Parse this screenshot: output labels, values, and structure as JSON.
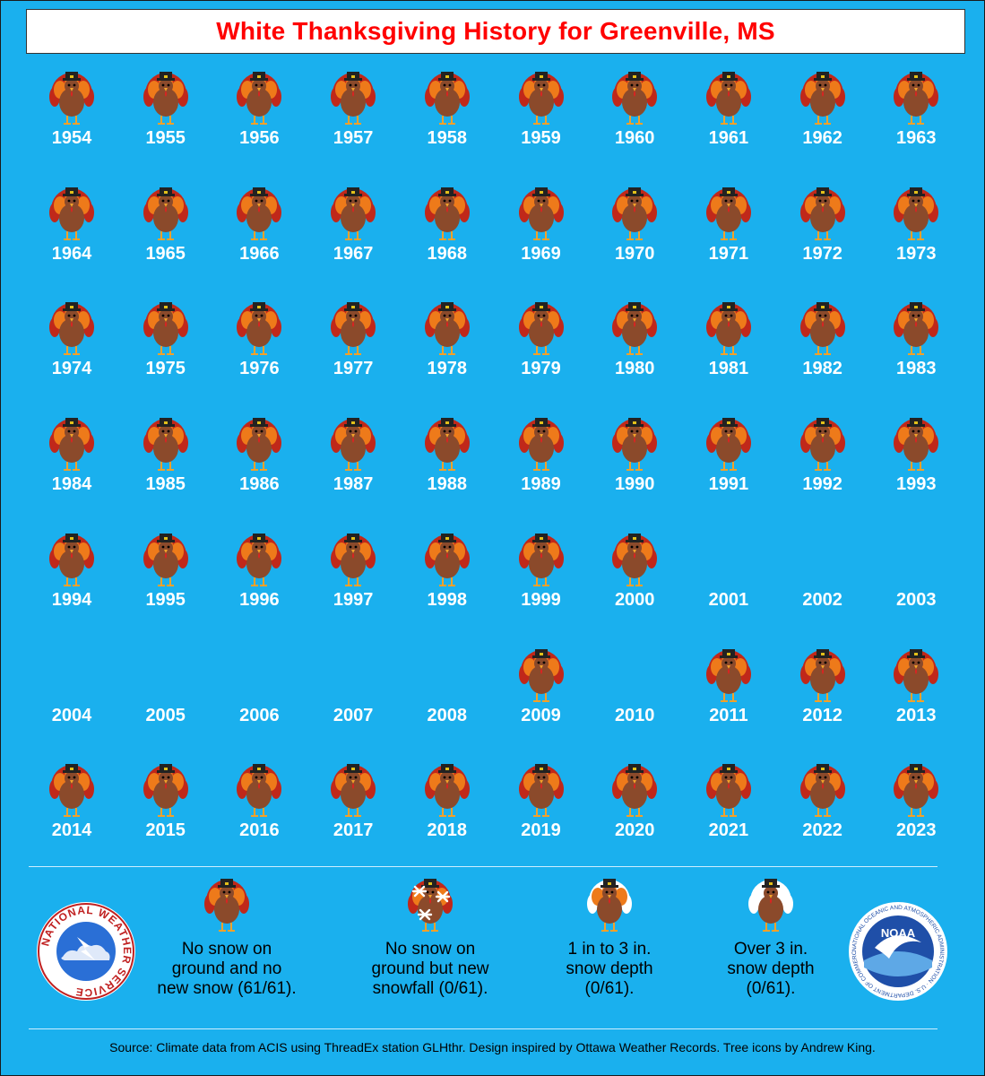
{
  "title": "White Thanksgiving History for Greenville, MS",
  "years": [
    {
      "year": "1954",
      "category": "none"
    },
    {
      "year": "1955",
      "category": "none"
    },
    {
      "year": "1956",
      "category": "none"
    },
    {
      "year": "1957",
      "category": "none"
    },
    {
      "year": "1958",
      "category": "none"
    },
    {
      "year": "1959",
      "category": "none"
    },
    {
      "year": "1960",
      "category": "none"
    },
    {
      "year": "1961",
      "category": "none"
    },
    {
      "year": "1962",
      "category": "none"
    },
    {
      "year": "1963",
      "category": "none"
    },
    {
      "year": "1964",
      "category": "none"
    },
    {
      "year": "1965",
      "category": "none"
    },
    {
      "year": "1966",
      "category": "none"
    },
    {
      "year": "1967",
      "category": "none"
    },
    {
      "year": "1968",
      "category": "none"
    },
    {
      "year": "1969",
      "category": "none"
    },
    {
      "year": "1970",
      "category": "none"
    },
    {
      "year": "1971",
      "category": "none"
    },
    {
      "year": "1972",
      "category": "none"
    },
    {
      "year": "1973",
      "category": "none"
    },
    {
      "year": "1974",
      "category": "none"
    },
    {
      "year": "1975",
      "category": "none"
    },
    {
      "year": "1976",
      "category": "none"
    },
    {
      "year": "1977",
      "category": "none"
    },
    {
      "year": "1978",
      "category": "none"
    },
    {
      "year": "1979",
      "category": "none"
    },
    {
      "year": "1980",
      "category": "none"
    },
    {
      "year": "1981",
      "category": "none"
    },
    {
      "year": "1982",
      "category": "none"
    },
    {
      "year": "1983",
      "category": "none"
    },
    {
      "year": "1984",
      "category": "none"
    },
    {
      "year": "1985",
      "category": "none"
    },
    {
      "year": "1986",
      "category": "none"
    },
    {
      "year": "1987",
      "category": "none"
    },
    {
      "year": "1988",
      "category": "none"
    },
    {
      "year": "1989",
      "category": "none"
    },
    {
      "year": "1990",
      "category": "none"
    },
    {
      "year": "1991",
      "category": "none"
    },
    {
      "year": "1992",
      "category": "none"
    },
    {
      "year": "1993",
      "category": "none"
    },
    {
      "year": "1994",
      "category": "none"
    },
    {
      "year": "1995",
      "category": "none"
    },
    {
      "year": "1996",
      "category": "none"
    },
    {
      "year": "1997",
      "category": "none"
    },
    {
      "year": "1998",
      "category": "none"
    },
    {
      "year": "1999",
      "category": "none"
    },
    {
      "year": "2000",
      "category": "none"
    },
    {
      "year": "2001",
      "category": "missing"
    },
    {
      "year": "2002",
      "category": "missing"
    },
    {
      "year": "2003",
      "category": "missing"
    },
    {
      "year": "2004",
      "category": "missing"
    },
    {
      "year": "2005",
      "category": "missing"
    },
    {
      "year": "2006",
      "category": "missing"
    },
    {
      "year": "2007",
      "category": "missing"
    },
    {
      "year": "2008",
      "category": "missing"
    },
    {
      "year": "2009",
      "category": "none"
    },
    {
      "year": "2010",
      "category": "missing"
    },
    {
      "year": "2011",
      "category": "none"
    },
    {
      "year": "2012",
      "category": "none"
    },
    {
      "year": "2013",
      "category": "none"
    },
    {
      "year": "2014",
      "category": "none"
    },
    {
      "year": "2015",
      "category": "none"
    },
    {
      "year": "2016",
      "category": "none"
    },
    {
      "year": "2017",
      "category": "none"
    },
    {
      "year": "2018",
      "category": "none"
    },
    {
      "year": "2019",
      "category": "none"
    },
    {
      "year": "2020",
      "category": "none"
    },
    {
      "year": "2021",
      "category": "none"
    },
    {
      "year": "2022",
      "category": "none"
    },
    {
      "year": "2023",
      "category": "none"
    }
  ],
  "legend": [
    {
      "category": "none",
      "label": "No snow on\nground and no\nnew snow (61/61)."
    },
    {
      "category": "new_snow",
      "label": "No snow on\nground but new\nsnowfall (0/61)."
    },
    {
      "category": "depth_1_3",
      "label": "1 in to 3 in.\nsnow depth\n(0/61)."
    },
    {
      "category": "depth_over_3",
      "label": "Over 3 in.\nsnow depth\n(0/61)."
    }
  ],
  "logos": {
    "nws_text": "NATIONAL WEATHER SERVICE",
    "noaa_text": "NOAA",
    "noaa_ring_text": "NATIONAL OCEANIC AND ATMOSPHERIC ADMINISTRATION · U.S. DEPARTMENT OF COMMERCE"
  },
  "source": "Source: Climate data from ACIS using ThreadEx station GLHthr. Design inspired by Ottawa Weather Records. Tree icons by Andrew King.",
  "colors": {
    "background": "#1ab0ee",
    "title": "#ff0000",
    "turkey_body": "#8b4a2b",
    "feather_red": "#c0281a",
    "feather_orange": "#ee7a1a",
    "snow_white": "#ffffff"
  }
}
